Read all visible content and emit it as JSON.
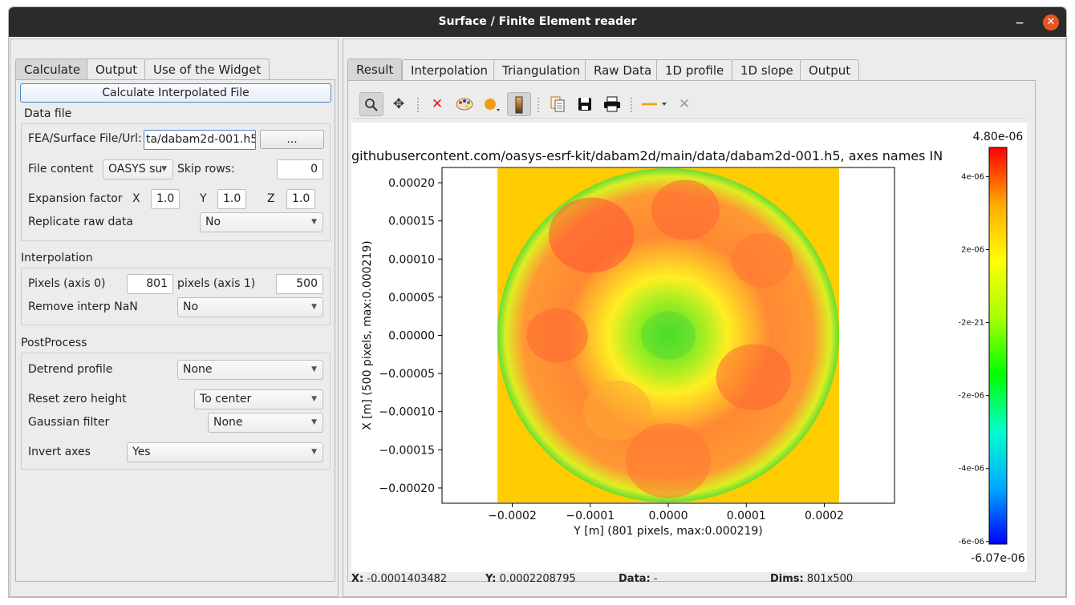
{
  "window": {
    "title": "Surface / Finite Element reader",
    "minimize": "−",
    "close": "✕"
  },
  "left": {
    "tabs": [
      "Calculate",
      "Output",
      "Use of the Widget"
    ],
    "calc_button": "Calculate Interpolated File",
    "data_file": {
      "title": "Data file",
      "file_label": "FEA/Surface File/Url:",
      "file_value": "ta/dabam2d-001.h5",
      "browse": "...",
      "content_label": "File content",
      "content_value": "OASYS su",
      "skip_label": "Skip rows:",
      "skip_value": "0",
      "expansion_label": "Expansion factor",
      "x_label": "X",
      "x_value": "1.0",
      "y_label": "Y",
      "y_value": "1.0",
      "z_label": "Z",
      "z_value": "1.0",
      "replicate_label": "Replicate raw data",
      "replicate_value": "No"
    },
    "interpolation": {
      "title": "Interpolation",
      "px0_label": "Pixels (axis 0)",
      "px0_value": "801",
      "px1_label": "pixels (axis 1)",
      "px1_value": "500",
      "nan_label": "Remove interp NaN",
      "nan_value": "No"
    },
    "postprocess": {
      "title": "PostProcess",
      "detrend_label": "Detrend profile",
      "detrend_value": "None",
      "reset_label": "Reset zero height",
      "reset_value": "To center",
      "gauss_label": "Gaussian filter",
      "gauss_value": "None",
      "invert_label": "Invert axes",
      "invert_value": "Yes"
    }
  },
  "right": {
    "tabs": [
      "Result",
      "Interpolation",
      "Triangulation",
      "Raw Data",
      "1D profile",
      "1D slope",
      "Output"
    ],
    "toolbar_icons": [
      "zoom-icon",
      "pan-icon",
      "clear-icon",
      "colormap-icon",
      "marker-icon",
      "colorbar-icon",
      "copy-icon",
      "save-icon",
      "print-icon",
      "line-style-icon",
      "crosshair-icon"
    ]
  },
  "status": {
    "x_label": "X:",
    "x_value": "-0.0001403482",
    "y_label": "Y:",
    "y_value": "0.0002208795",
    "data_label": "Data:",
    "data_value": "-",
    "dims_label": "Dims:",
    "dims_value": "801x500"
  },
  "chart_data": {
    "type": "heatmap",
    "title": "githubusercontent.com/oasys-esrf-kit/dabam2d/main/data/dabam2d-001.h5, axes names IN",
    "xlabel": "Y [m] (801 pixels, max:0.000219)",
    "ylabel": "X [m] (500 pixels, max:0.000219)",
    "xlim": [
      -0.00029,
      0.00029
    ],
    "ylim": [
      -0.00022,
      0.00022
    ],
    "xticks": [
      "−0.0002",
      "−0.0001",
      "0.0000",
      "0.0001",
      "0.0002"
    ],
    "xtick_values": [
      -0.0002,
      -0.0001,
      0.0,
      0.0001,
      0.0002
    ],
    "yticks": [
      "0.00020",
      "0.00015",
      "0.00010",
      "0.00005",
      "0.00000",
      "−0.00005",
      "−0.00010",
      "−0.00015",
      "−0.00020"
    ],
    "ytick_values": [
      0.0002,
      0.00015,
      0.0001,
      5e-05,
      0.0,
      -5e-05,
      -0.0001,
      -0.00015,
      -0.0002
    ],
    "data_extent_x": [
      -0.000219,
      0.000219
    ],
    "data_extent_y": [
      -0.000219,
      0.000219
    ],
    "colorbar": {
      "max_label": "4.80e-06",
      "min_label": "-6.07e-06",
      "vmin": -6.07e-06,
      "vmax": 4.8e-06,
      "ticks": [
        "4e-06",
        "2e-06",
        "-2e-21",
        "-2e-06",
        "-4e-06",
        "-6e-06"
      ],
      "tick_values": [
        4e-06,
        2e-06,
        -2e-21,
        -2e-06,
        -4e-06,
        -6e-06
      ],
      "colormap": [
        "#0000ff",
        "#00aaff",
        "#00ffcc",
        "#00ff00",
        "#aaff00",
        "#ffff00",
        "#ffaa00",
        "#ff0000"
      ]
    },
    "fill_color": "#ffcc00"
  }
}
